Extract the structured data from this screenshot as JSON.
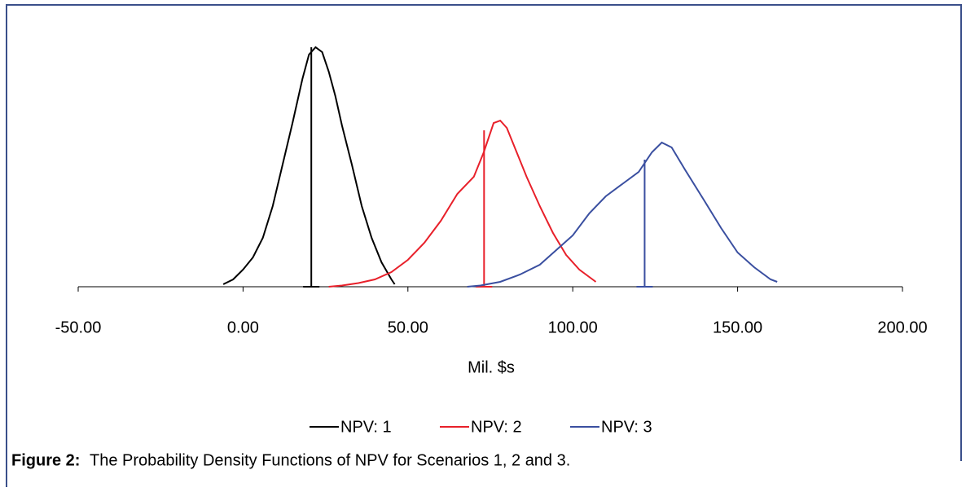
{
  "chart_data": {
    "type": "line",
    "xlabel": "Mil. $s",
    "caption_label": "Figure 2:",
    "caption": "The Probability Density Functions of NPV for Scenarios 1, 2 and 3.",
    "xlim": [
      -50,
      200
    ],
    "xticks": [
      {
        "value": -50,
        "label": "-50.00"
      },
      {
        "value": 0,
        "label": "0.00"
      },
      {
        "value": 50,
        "label": "50.00"
      },
      {
        "value": 100,
        "label": "100.00"
      },
      {
        "value": 150,
        "label": "150.00"
      },
      {
        "value": 200,
        "label": "200.00"
      }
    ],
    "ylim": [
      0,
      100
    ],
    "series": [
      {
        "name": "NPV: 1",
        "color": "#000000",
        "mean": 20.7,
        "mean_height": 98,
        "x": [
          -6,
          -3,
          0,
          3,
          6,
          9,
          12,
          15,
          18,
          20,
          22,
          24,
          26,
          28,
          30,
          33,
          36,
          39,
          42,
          45,
          46
        ],
        "values": [
          1,
          3,
          7,
          12,
          20,
          33,
          50,
          67,
          85,
          95,
          98,
          96,
          88,
          78,
          66,
          50,
          33,
          20,
          10,
          3,
          1
        ]
      },
      {
        "name": "NPV: 2",
        "color": "#e8202a",
        "mean": 73.1,
        "mean_height": 64,
        "x": [
          26,
          30,
          35,
          40,
          45,
          50,
          55,
          60,
          65,
          70,
          73,
          76,
          78,
          80,
          83,
          86,
          90,
          94,
          98,
          102,
          107
        ],
        "values": [
          0,
          0.5,
          1.5,
          3,
          6,
          11,
          18,
          27,
          38,
          45,
          55,
          67,
          68,
          65,
          55,
          45,
          33,
          22,
          13,
          7,
          2
        ]
      },
      {
        "name": "NPV: 3",
        "color": "#3a4fa0",
        "mean": 121.8,
        "mean_height": 52,
        "x": [
          68,
          72,
          78,
          84,
          90,
          95,
          100,
          105,
          110,
          115,
          120,
          124,
          127,
          130,
          134,
          140,
          145,
          150,
          155,
          160,
          162
        ],
        "values": [
          0,
          0.5,
          2,
          5,
          9,
          15,
          21,
          30,
          37,
          42,
          47,
          55,
          59,
          57,
          48,
          35,
          24,
          14,
          8,
          3,
          2
        ]
      }
    ]
  }
}
